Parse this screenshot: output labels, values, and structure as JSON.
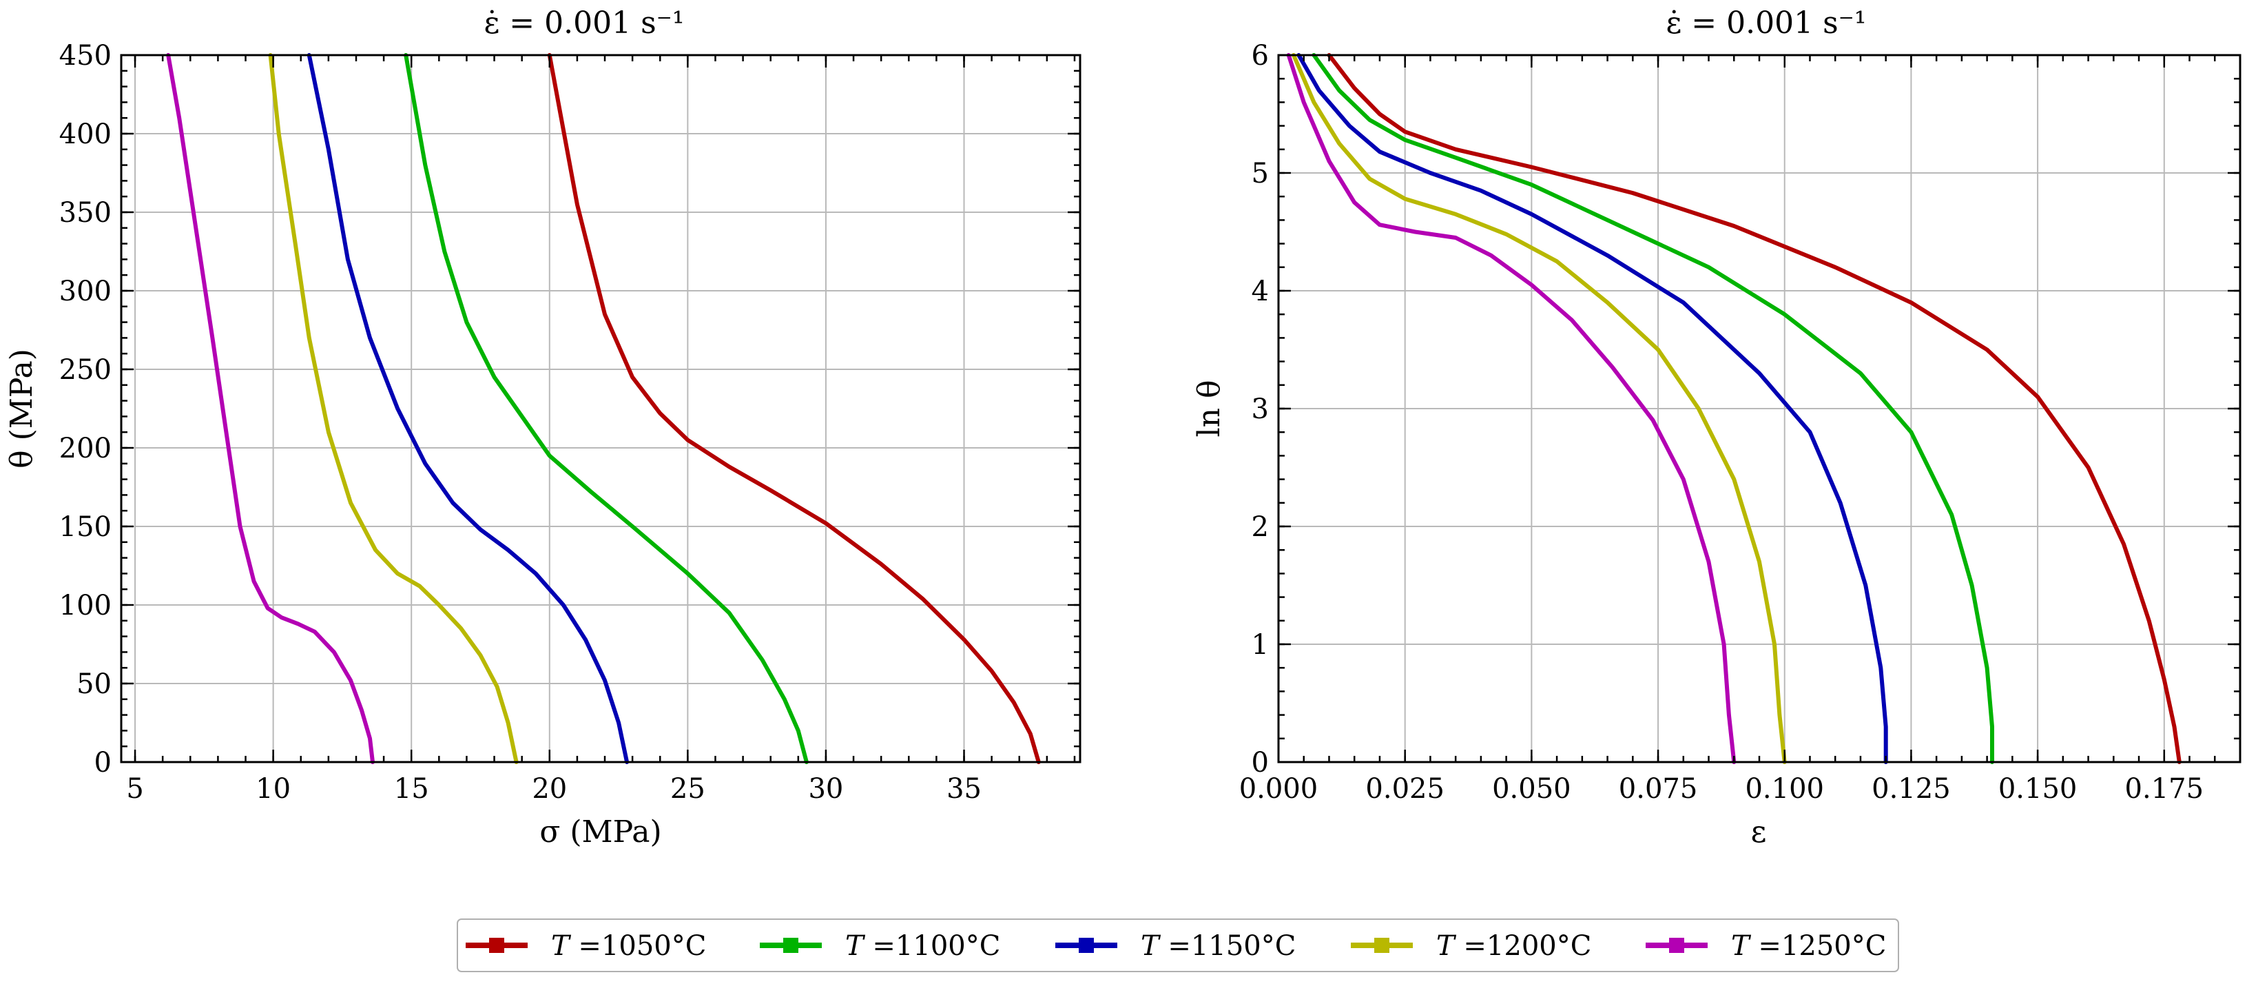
{
  "series_colors": {
    "T1050": "#b30000",
    "T1100": "#00b300",
    "T1150": "#0000b3",
    "T1200": "#b8b800",
    "T1250": "#b300b3"
  },
  "legend": {
    "entries": [
      {
        "prefix": "T",
        "label": " =1050°C",
        "key": "T1050"
      },
      {
        "prefix": "T",
        "label": " =1100°C",
        "key": "T1100"
      },
      {
        "prefix": "T",
        "label": " =1150°C",
        "key": "T1150"
      },
      {
        "prefix": "T",
        "label": " =1200°C",
        "key": "T1200"
      },
      {
        "prefix": "T",
        "label": " =1250°C",
        "key": "T1250"
      }
    ]
  },
  "chart_data": [
    {
      "type": "line",
      "title": "ε̇ = 0.001 s⁻¹",
      "xlabel": "σ (MPa)",
      "ylabel": "θ (MPa)",
      "xlim": [
        4.5,
        39.2
      ],
      "ylim": [
        0,
        450
      ],
      "xticks": [
        5,
        10,
        15,
        20,
        25,
        30,
        35
      ],
      "yticks": [
        0,
        50,
        100,
        150,
        200,
        250,
        300,
        350,
        400,
        450
      ],
      "xtick_labels": [
        "5",
        "10",
        "15",
        "20",
        "25",
        "30",
        "35"
      ],
      "ytick_labels": [
        "0",
        "50",
        "100",
        "150",
        "200",
        "250",
        "300",
        "350",
        "400",
        "450"
      ],
      "grid": true,
      "series": [
        {
          "name": "T =1050°C",
          "key": "T1050",
          "points": [
            [
              20.0,
              450
            ],
            [
              21.0,
              355
            ],
            [
              22.0,
              285
            ],
            [
              23.0,
              245
            ],
            [
              24.0,
              222
            ],
            [
              25.0,
              205
            ],
            [
              26.5,
              188
            ],
            [
              28.0,
              173
            ],
            [
              30.0,
              152
            ],
            [
              32.0,
              126
            ],
            [
              33.5,
              104
            ],
            [
              35.0,
              78
            ],
            [
              36.0,
              58
            ],
            [
              36.8,
              38
            ],
            [
              37.4,
              18
            ],
            [
              37.7,
              0
            ]
          ]
        },
        {
          "name": "T =1100°C",
          "key": "T1100",
          "points": [
            [
              14.8,
              450
            ],
            [
              15.5,
              380
            ],
            [
              16.2,
              325
            ],
            [
              17.0,
              280
            ],
            [
              18.0,
              245
            ],
            [
              19.0,
              220
            ],
            [
              20.0,
              195
            ],
            [
              21.5,
              172
            ],
            [
              23.0,
              150
            ],
            [
              25.0,
              120
            ],
            [
              26.5,
              95
            ],
            [
              27.7,
              65
            ],
            [
              28.5,
              40
            ],
            [
              29.0,
              20
            ],
            [
              29.3,
              0
            ]
          ]
        },
        {
          "name": "T =1150°C",
          "key": "T1150",
          "points": [
            [
              11.3,
              450
            ],
            [
              12.0,
              390
            ],
            [
              12.7,
              320
            ],
            [
              13.5,
              270
            ],
            [
              14.5,
              225
            ],
            [
              15.5,
              190
            ],
            [
              16.5,
              165
            ],
            [
              17.5,
              148
            ],
            [
              18.5,
              135
            ],
            [
              19.5,
              120
            ],
            [
              20.5,
              100
            ],
            [
              21.3,
              78
            ],
            [
              22.0,
              52
            ],
            [
              22.5,
              25
            ],
            [
              22.8,
              0
            ]
          ]
        },
        {
          "name": "T =1200°C",
          "key": "T1200",
          "points": [
            [
              9.9,
              450
            ],
            [
              10.2,
              400
            ],
            [
              10.8,
              330
            ],
            [
              11.3,
              270
            ],
            [
              12.0,
              210
            ],
            [
              12.8,
              165
            ],
            [
              13.7,
              135
            ],
            [
              14.5,
              120
            ],
            [
              15.3,
              112
            ],
            [
              16.0,
              100
            ],
            [
              16.8,
              85
            ],
            [
              17.5,
              68
            ],
            [
              18.1,
              48
            ],
            [
              18.5,
              25
            ],
            [
              18.8,
              0
            ]
          ]
        },
        {
          "name": "T =1250°C",
          "key": "T1250",
          "points": [
            [
              6.2,
              450
            ],
            [
              6.6,
              410
            ],
            [
              7.2,
              340
            ],
            [
              7.8,
              270
            ],
            [
              8.3,
              210
            ],
            [
              8.8,
              150
            ],
            [
              9.3,
              115
            ],
            [
              9.8,
              98
            ],
            [
              10.3,
              92
            ],
            [
              10.9,
              88
            ],
            [
              11.5,
              83
            ],
            [
              12.2,
              70
            ],
            [
              12.8,
              52
            ],
            [
              13.2,
              33
            ],
            [
              13.5,
              15
            ],
            [
              13.6,
              0
            ]
          ]
        }
      ]
    },
    {
      "type": "line",
      "title": "ε̇ = 0.001 s⁻¹",
      "xlabel": "ε",
      "ylabel": "ln θ",
      "xlim": [
        0.0,
        0.19
      ],
      "ylim": [
        0,
        6
      ],
      "xticks": [
        0.0,
        0.025,
        0.05,
        0.075,
        0.1,
        0.125,
        0.15,
        0.175
      ],
      "yticks": [
        0,
        1,
        2,
        3,
        4,
        5,
        6
      ],
      "xtick_labels": [
        "0.000",
        "0.025",
        "0.050",
        "0.075",
        "0.100",
        "0.125",
        "0.150",
        "0.175"
      ],
      "ytick_labels": [
        "0",
        "1",
        "2",
        "3",
        "4",
        "5",
        "6"
      ],
      "grid": true,
      "series": [
        {
          "name": "T =1050°C",
          "key": "T1050",
          "points": [
            [
              0.01,
              6.0
            ],
            [
              0.015,
              5.72
            ],
            [
              0.02,
              5.5
            ],
            [
              0.025,
              5.35
            ],
            [
              0.035,
              5.2
            ],
            [
              0.05,
              5.05
            ],
            [
              0.07,
              4.83
            ],
            [
              0.09,
              4.55
            ],
            [
              0.11,
              4.2
            ],
            [
              0.125,
              3.9
            ],
            [
              0.14,
              3.5
            ],
            [
              0.15,
              3.1
            ],
            [
              0.16,
              2.5
            ],
            [
              0.167,
              1.85
            ],
            [
              0.172,
              1.2
            ],
            [
              0.175,
              0.7
            ],
            [
              0.177,
              0.3
            ],
            [
              0.178,
              0
            ]
          ]
        },
        {
          "name": "T =1100°C",
          "key": "T1100",
          "points": [
            [
              0.007,
              6.0
            ],
            [
              0.012,
              5.7
            ],
            [
              0.018,
              5.45
            ],
            [
              0.025,
              5.28
            ],
            [
              0.035,
              5.13
            ],
            [
              0.05,
              4.9
            ],
            [
              0.07,
              4.5
            ],
            [
              0.085,
              4.2
            ],
            [
              0.1,
              3.8
            ],
            [
              0.115,
              3.3
            ],
            [
              0.125,
              2.8
            ],
            [
              0.133,
              2.1
            ],
            [
              0.137,
              1.5
            ],
            [
              0.14,
              0.8
            ],
            [
              0.141,
              0.3
            ],
            [
              0.141,
              0
            ]
          ]
        },
        {
          "name": "T =1150°C",
          "key": "T1150",
          "points": [
            [
              0.004,
              6.0
            ],
            [
              0.008,
              5.7
            ],
            [
              0.014,
              5.4
            ],
            [
              0.02,
              5.18
            ],
            [
              0.03,
              5.0
            ],
            [
              0.04,
              4.85
            ],
            [
              0.05,
              4.65
            ],
            [
              0.065,
              4.3
            ],
            [
              0.08,
              3.9
            ],
            [
              0.095,
              3.3
            ],
            [
              0.105,
              2.8
            ],
            [
              0.111,
              2.2
            ],
            [
              0.116,
              1.5
            ],
            [
              0.119,
              0.8
            ],
            [
              0.12,
              0.3
            ],
            [
              0.12,
              0
            ]
          ]
        },
        {
          "name": "T =1200°C",
          "key": "T1200",
          "points": [
            [
              0.003,
              6.0
            ],
            [
              0.007,
              5.6
            ],
            [
              0.012,
              5.25
            ],
            [
              0.018,
              4.95
            ],
            [
              0.025,
              4.78
            ],
            [
              0.035,
              4.65
            ],
            [
              0.045,
              4.48
            ],
            [
              0.055,
              4.25
            ],
            [
              0.065,
              3.9
            ],
            [
              0.075,
              3.5
            ],
            [
              0.083,
              3.0
            ],
            [
              0.09,
              2.4
            ],
            [
              0.095,
              1.7
            ],
            [
              0.098,
              1.0
            ],
            [
              0.099,
              0.4
            ],
            [
              0.1,
              0
            ]
          ]
        },
        {
          "name": "T =1250°C",
          "key": "T1250",
          "points": [
            [
              0.002,
              6.0
            ],
            [
              0.005,
              5.6
            ],
            [
              0.01,
              5.1
            ],
            [
              0.015,
              4.75
            ],
            [
              0.02,
              4.56
            ],
            [
              0.027,
              4.5
            ],
            [
              0.035,
              4.45
            ],
            [
              0.042,
              4.3
            ],
            [
              0.05,
              4.05
            ],
            [
              0.058,
              3.75
            ],
            [
              0.066,
              3.35
            ],
            [
              0.074,
              2.9
            ],
            [
              0.08,
              2.4
            ],
            [
              0.085,
              1.7
            ],
            [
              0.088,
              1.0
            ],
            [
              0.089,
              0.4
            ],
            [
              0.09,
              0
            ]
          ]
        }
      ]
    }
  ]
}
